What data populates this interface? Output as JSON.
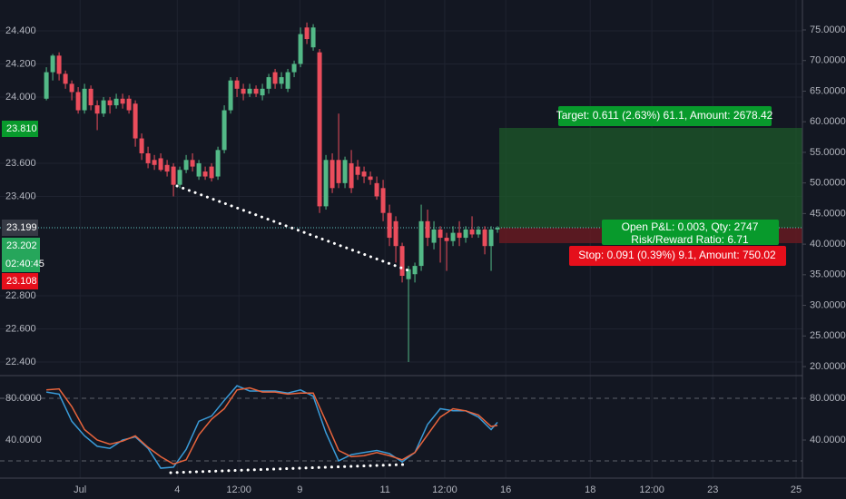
{
  "chart_data": [
    {
      "type": "candlestick",
      "up_color": "#53b987",
      "down_color": "#eb4d5c",
      "open": [
        23.99,
        24.15,
        24.25,
        24.14,
        24.08,
        24.03,
        23.92,
        24.05,
        23.95,
        23.9,
        23.98,
        23.95,
        23.99,
        23.99,
        23.96,
        23.75,
        23.66,
        23.62,
        23.63,
        23.59,
        23.58,
        23.47,
        23.56,
        23.62,
        23.52,
        23.55,
        23.58,
        23.52,
        23.68,
        23.92,
        24.1,
        24.05,
        24.02,
        24.05,
        24.01,
        24.05,
        24.15,
        24.08,
        24.05,
        24.15,
        24.2,
        24.42,
        24.3,
        24.27,
        23.34,
        23.62,
        23.62,
        23.48,
        23.6,
        23.58,
        23.55,
        23.52,
        23.48,
        23.45,
        23.3,
        23.25,
        23.1,
        22.9,
        22.93,
        22.98,
        23.25,
        23.12,
        23.2,
        23.15,
        23.13,
        23.18,
        23.15,
        23.2,
        23.17,
        23.2,
        23.1,
        23.2
      ],
      "high": [
        24.18,
        24.26,
        24.27,
        24.16,
        24.1,
        24.06,
        24.08,
        24.07,
        23.98,
        24.0,
        24.0,
        24.02,
        24.02,
        24.01,
        23.98,
        23.78,
        23.7,
        23.65,
        23.66,
        23.62,
        23.6,
        23.58,
        23.65,
        23.66,
        23.62,
        23.58,
        23.6,
        23.7,
        23.95,
        24.12,
        24.12,
        24.08,
        24.08,
        24.07,
        24.08,
        24.14,
        24.17,
        24.15,
        24.17,
        24.22,
        24.42,
        24.45,
        24.44,
        24.29,
        23.65,
        23.66,
        23.9,
        23.64,
        23.68,
        23.62,
        23.58,
        23.55,
        23.52,
        23.5,
        23.35,
        23.28,
        23.12,
        22.98,
        23.0,
        23.35,
        23.32,
        23.25,
        23.22,
        23.18,
        23.22,
        23.25,
        23.22,
        23.28,
        23.22,
        23.22,
        23.22,
        23.22
      ],
      "low": [
        23.98,
        24.1,
        24.1,
        24.05,
        23.98,
        23.9,
        23.9,
        23.92,
        23.8,
        23.88,
        23.9,
        23.93,
        23.93,
        23.9,
        23.7,
        23.62,
        23.57,
        23.56,
        23.55,
        23.52,
        23.4,
        23.45,
        23.54,
        23.55,
        23.5,
        23.5,
        23.49,
        23.5,
        23.66,
        23.9,
        24.0,
        23.98,
        24.0,
        24.0,
        23.98,
        24.02,
        24.05,
        24.05,
        24.03,
        24.12,
        24.18,
        24.32,
        24.28,
        23.3,
        23.32,
        23.42,
        23.45,
        23.45,
        23.42,
        23.5,
        23.48,
        23.47,
        23.38,
        23.25,
        23.1,
        23.0,
        22.88,
        22.4,
        22.88,
        22.95,
        23.1,
        23.08,
        23.0,
        22.95,
        23.1,
        23.1,
        23.12,
        23.15,
        23.15,
        23.05,
        22.95,
        23.18
      ],
      "close": [
        24.15,
        24.25,
        24.14,
        24.08,
        24.03,
        23.92,
        24.05,
        23.95,
        23.9,
        23.98,
        23.95,
        23.99,
        23.96,
        23.92,
        23.75,
        23.66,
        23.6,
        23.59,
        23.56,
        23.55,
        23.47,
        23.56,
        23.62,
        23.58,
        23.6,
        23.52,
        23.51,
        23.68,
        23.92,
        24.1,
        24.05,
        24.02,
        24.05,
        24.02,
        24.05,
        24.12,
        24.08,
        24.12,
        24.15,
        24.2,
        24.38,
        24.35,
        24.42,
        23.34,
        23.62,
        23.45,
        23.48,
        23.62,
        23.45,
        23.53,
        23.52,
        23.5,
        23.4,
        23.3,
        23.15,
        23.1,
        22.92,
        22.96,
        22.98,
        23.25,
        23.15,
        23.2,
        23.15,
        23.13,
        23.18,
        23.15,
        23.2,
        23.17,
        23.2,
        23.1,
        23.2,
        23.21
      ],
      "xlim": [
        -7.3,
        119
      ],
      "xticks": [
        {
          "value": 5.3,
          "label": "Jul"
        },
        {
          "value": 20.6,
          "label": "4"
        },
        {
          "value": 30.3,
          "label": "12:00"
        },
        {
          "value": 39.9,
          "label": "9"
        },
        {
          "value": 53.3,
          "label": "11"
        },
        {
          "value": 62.7,
          "label": "12:00"
        },
        {
          "value": 72.3,
          "label": "16"
        },
        {
          "value": 85.6,
          "label": "18"
        },
        {
          "value": 95.3,
          "label": "12:00"
        },
        {
          "value": 104.9,
          "label": "23"
        },
        {
          "value": 118,
          "label": "25"
        }
      ],
      "ylim": [
        22.323,
        24.586
      ],
      "yticks": [
        {
          "value": 24.4,
          "label": "24.400"
        },
        {
          "value": 24.2,
          "label": "24.200"
        },
        {
          "value": 24.0,
          "label": "24.000"
        },
        {
          "value": 23.6,
          "label": "23.600"
        },
        {
          "value": 23.4,
          "label": "23.400"
        },
        {
          "value": 22.8,
          "label": "22.800"
        },
        {
          "value": 22.6,
          "label": "22.600"
        },
        {
          "value": 22.4,
          "label": "22.400"
        }
      ],
      "y2lim": [
        18.67,
        79.89
      ],
      "y2ticks": [
        {
          "value": 75,
          "label": "75.0000"
        },
        {
          "value": 70,
          "label": "70.0000"
        },
        {
          "value": 65,
          "label": "65.0000"
        },
        {
          "value": 60,
          "label": "60.0000"
        },
        {
          "value": 55,
          "label": "55.0000"
        },
        {
          "value": 50,
          "label": "50.0000"
        },
        {
          "value": 45,
          "label": "45.0000"
        },
        {
          "value": 40,
          "label": "40.0000"
        },
        {
          "value": 35,
          "label": "35.0000"
        },
        {
          "value": 30,
          "label": "30.0000"
        },
        {
          "value": 25,
          "label": "25.0000"
        },
        {
          "value": 20,
          "label": "20.0000"
        }
      ],
      "grid": true,
      "price_labels": [
        "23.810",
        "23.199",
        "23.202",
        "02:40:45",
        "23.108"
      ],
      "annotations": [
        "Target: 0.611 (2.63%) 61.1, Amount: 2678.42",
        "Open P&L: 0.003, Qty: 2747",
        "Risk/Reward Ratio: 6.71",
        "Stop: 0.091 (0.39%) 9.1, Amount: 750.02"
      ]
    },
    {
      "type": "line",
      "x": [
        0,
        2,
        4,
        6,
        8,
        10,
        12,
        14,
        16,
        18,
        20,
        22,
        24,
        26,
        28,
        30,
        32,
        34,
        36,
        38,
        40,
        42,
        44,
        46,
        48,
        50,
        52,
        54,
        56,
        58,
        60,
        62,
        64,
        66,
        68,
        70,
        71
      ],
      "series": [
        {
          "color": "#3a9bd8",
          "values": [
            86,
            84,
            58,
            44,
            34,
            32,
            40,
            43,
            32,
            13,
            14,
            31,
            58,
            63,
            78,
            92,
            87,
            87,
            87,
            85,
            88,
            82,
            47,
            20,
            26,
            28,
            30,
            27,
            19,
            28,
            55,
            70,
            68,
            68,
            62,
            50,
            57
          ]
        },
        {
          "color": "#e8643c",
          "values": [
            88,
            89,
            72,
            50,
            40,
            36,
            39,
            44,
            33,
            24,
            17,
            21,
            45,
            60,
            70,
            88,
            90,
            86,
            86,
            84,
            85,
            85,
            58,
            30,
            24,
            25,
            28,
            25,
            21,
            28,
            45,
            62,
            70,
            68,
            64,
            53,
            54
          ]
        }
      ],
      "xlim": [
        -7.3,
        119
      ],
      "ylim": [
        5.2,
        100
      ],
      "yticks": [
        {
          "value": 80,
          "label": "80.0000"
        },
        {
          "value": 40,
          "label": "40.0000"
        }
      ],
      "bands": [
        80,
        20
      ]
    }
  ]
}
